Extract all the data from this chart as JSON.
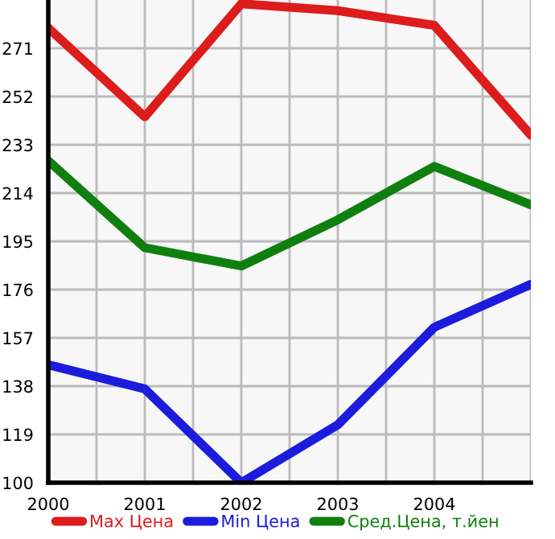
{
  "chart_data": {
    "type": "line",
    "x": [
      2000,
      2001,
      2002,
      2003,
      2004,
      2005
    ],
    "series": [
      {
        "name": "Max Цена",
        "color": "#dd1c1c",
        "values": [
          279,
          244,
          288.5,
          285.8,
          280,
          236.8
        ]
      },
      {
        "name": "Min Цена",
        "color": "#1c1cdd",
        "values": [
          146.4,
          136.9,
          100,
          122.8,
          161.2,
          178.1
        ]
      },
      {
        "name": "Сред.Цена, т.йен",
        "color": "#0f800f",
        "values": [
          226.7,
          192.5,
          185.3,
          203.5,
          224.5,
          209.4
        ]
      }
    ],
    "xlim": [
      2000,
      2005
    ],
    "xticks": [
      2000,
      {
        "value": 2000.5,
        "label": null
      },
      2001,
      {
        "value": 2001.5,
        "label": null
      },
      2002,
      {
        "value": 2002.5,
        "label": null
      },
      2003,
      {
        "value": 2003.5,
        "label": null
      },
      2004,
      {
        "value": 2004.5,
        "label": null
      },
      {
        "value": 2005,
        "label": null
      }
    ],
    "ylim": [
      100,
      290
    ],
    "yticks": [
      100,
      119,
      138,
      157,
      176,
      195,
      214,
      233,
      252,
      271
    ],
    "grid": true,
    "legend": "bottom",
    "marker": "none",
    "line_style": "solid"
  }
}
